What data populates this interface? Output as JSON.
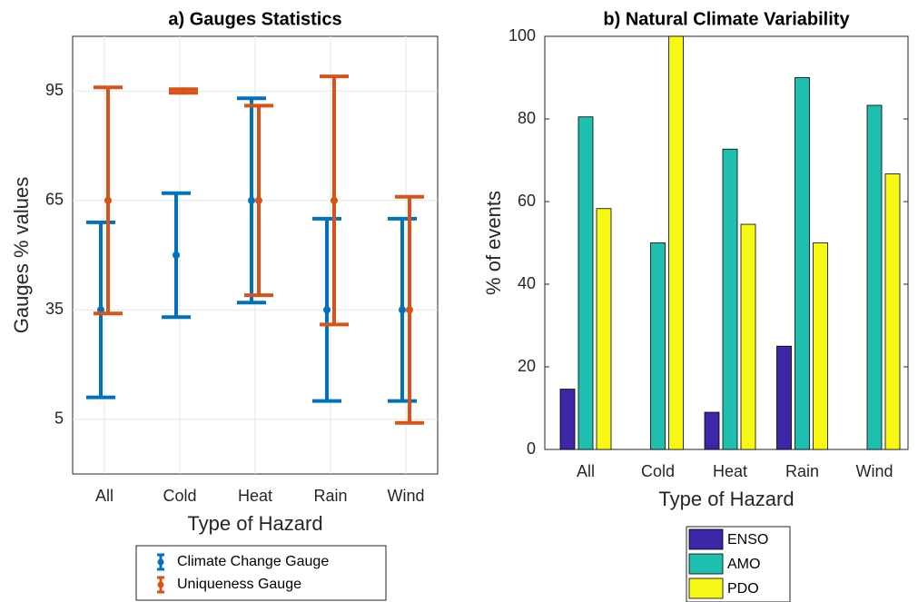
{
  "chart_data": [
    {
      "type": "errorbar",
      "title": "a) Gauges Statistics",
      "xlabel": "Type of Hazard",
      "ylabel": "Gauges % values",
      "categories": [
        "All",
        "Cold",
        "Heat",
        "Rain",
        "Wind"
      ],
      "series": [
        {
          "name": "Climate Change Gauge",
          "color": "#0072bd",
          "values": [
            35,
            50,
            65,
            35,
            35
          ],
          "errors": [
            24,
            17,
            28,
            25,
            25
          ]
        },
        {
          "name": "Uniqueness Gauge",
          "color": "#d95319",
          "values": [
            65,
            95,
            65,
            65,
            35
          ],
          "errors": [
            31,
            0.5,
            26,
            34,
            31
          ]
        }
      ],
      "ylim": [
        -10,
        110
      ],
      "yticks": [
        5,
        35,
        65,
        95
      ],
      "grid": true,
      "legend": "below"
    },
    {
      "type": "bar",
      "title": "b) Natural Climate Variability",
      "xlabel": "Type of Hazard",
      "ylabel": "% of events",
      "categories": [
        "All",
        "Cold",
        "Heat",
        "Rain",
        "Wind"
      ],
      "series": [
        {
          "name": "ENSO",
          "color": "#3e26a8",
          "values": [
            14.6,
            0,
            9,
            25,
            0
          ]
        },
        {
          "name": "AMO",
          "color": "#1fbfb0",
          "values": [
            80.5,
            50,
            72.7,
            90,
            83.3
          ]
        },
        {
          "name": "PDO",
          "color": "#f7f716",
          "values": [
            58.3,
            100,
            54.5,
            50,
            66.7
          ]
        }
      ],
      "ylim": [
        0,
        100
      ],
      "yticks": [
        0,
        20,
        40,
        60,
        80,
        100
      ],
      "grid": false,
      "legend": "below"
    }
  ]
}
